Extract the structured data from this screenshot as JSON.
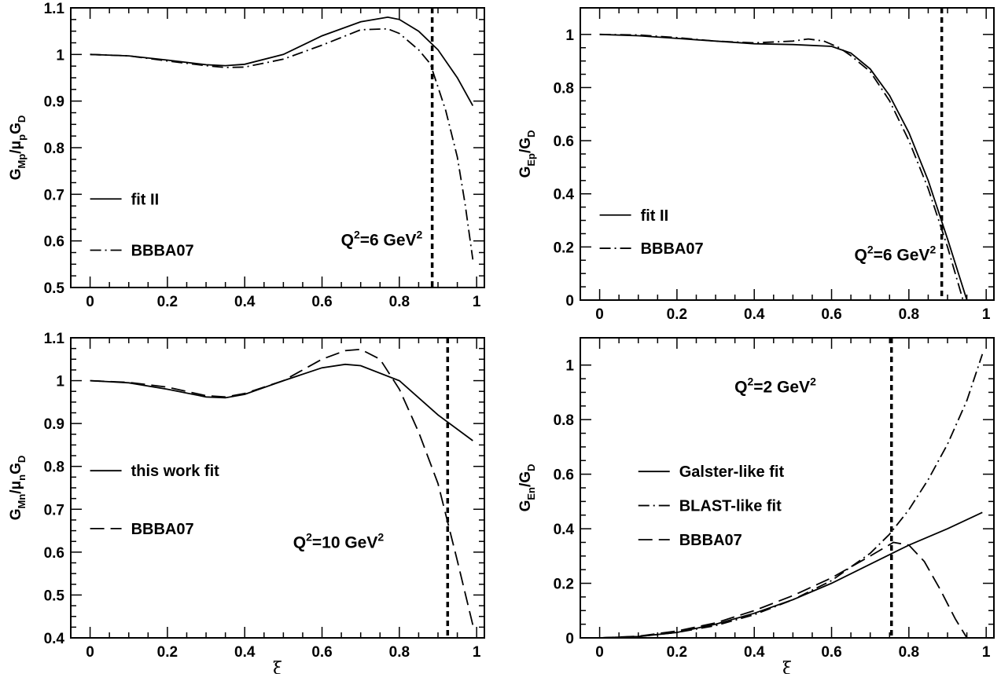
{
  "chart_data": [
    {
      "type": "line",
      "xlabel": "",
      "ylabel_parts": [
        [
          "G",
          "Mp",
          ""
        ],
        [
          "/",
          "",
          ""
        ],
        [
          "μ",
          "p",
          ""
        ],
        [
          "G",
          "D",
          ""
        ]
      ],
      "xlim": [
        -0.05,
        1.02
      ],
      "ylim": [
        0.5,
        1.1
      ],
      "xticks": [
        0,
        0.2,
        0.4,
        0.6,
        0.8,
        1
      ],
      "xtick_labels": [
        "0",
        "0.2",
        "0.4",
        "0.6",
        "0.8",
        "1"
      ],
      "yticks": [
        0.5,
        0.6,
        0.7,
        0.8,
        0.9,
        1,
        1.1
      ],
      "ytick_labels": [
        "0.5",
        "0.6",
        "0.7",
        "0.8",
        "0.9",
        "1",
        "1.1"
      ],
      "vline_x": 0.885,
      "annotation": {
        "pre": "Q",
        "sup1": "2",
        "mid": "=6 GeV",
        "sup2": "2",
        "x": 0.86,
        "y": 0.59
      },
      "legend": {
        "x": 0.0,
        "y": 0.69,
        "dy": 0.11
      },
      "series": [
        {
          "name": "fit II",
          "style": "solid",
          "x": [
            0,
            0.1,
            0.2,
            0.3,
            0.35,
            0.4,
            0.5,
            0.6,
            0.7,
            0.77,
            0.8,
            0.85,
            0.9,
            0.95,
            0.99
          ],
          "y": [
            1.0,
            0.997,
            0.988,
            0.978,
            0.976,
            0.979,
            1.0,
            1.04,
            1.07,
            1.08,
            1.075,
            1.05,
            1.01,
            0.95,
            0.89
          ]
        },
        {
          "name": "BBBA07",
          "style": "dashdot",
          "x": [
            0,
            0.1,
            0.2,
            0.3,
            0.35,
            0.4,
            0.5,
            0.6,
            0.7,
            0.77,
            0.8,
            0.85,
            0.88,
            0.92,
            0.95,
            0.97,
            0.99
          ],
          "y": [
            1.0,
            0.997,
            0.986,
            0.976,
            0.972,
            0.973,
            0.99,
            1.02,
            1.053,
            1.055,
            1.045,
            1.01,
            0.98,
            0.88,
            0.78,
            0.68,
            0.56
          ]
        }
      ]
    },
    {
      "type": "line",
      "xlabel": "",
      "ylabel_parts": [
        [
          "G",
          "Ep",
          ""
        ],
        [
          "/",
          "",
          ""
        ],
        [
          "G",
          "D",
          ""
        ]
      ],
      "xlim": [
        -0.05,
        1.02
      ],
      "ylim": [
        0,
        1.1
      ],
      "xticks": [
        0,
        0.2,
        0.4,
        0.6,
        0.8,
        1
      ],
      "xtick_labels": [
        "0",
        "0.2",
        "0.4",
        "0.6",
        "0.8",
        "1"
      ],
      "yticks": [
        0,
        0.2,
        0.4,
        0.6,
        0.8,
        1
      ],
      "ytick_labels": [
        "0",
        "0.2",
        "0.4",
        "0.6",
        "0.8",
        "1"
      ],
      "vline_x": 0.885,
      "annotation": {
        "pre": "Q",
        "sup1": "2",
        "mid": "=6 GeV",
        "sup2": "2",
        "x": 0.87,
        "y": 0.15
      },
      "legend": {
        "x": 0.0,
        "y": 0.32,
        "dy": 0.125
      },
      "series": [
        {
          "name": "fit II",
          "style": "solid",
          "x": [
            0,
            0.1,
            0.2,
            0.3,
            0.4,
            0.5,
            0.6,
            0.65,
            0.7,
            0.75,
            0.8,
            0.85,
            0.9,
            0.95
          ],
          "y": [
            1.0,
            0.995,
            0.985,
            0.975,
            0.965,
            0.962,
            0.955,
            0.93,
            0.87,
            0.77,
            0.63,
            0.45,
            0.23,
            0.0
          ]
        },
        {
          "name": "BBBA07",
          "style": "dashdot",
          "x": [
            0,
            0.1,
            0.2,
            0.3,
            0.4,
            0.5,
            0.54,
            0.58,
            0.62,
            0.65,
            0.7,
            0.75,
            0.8,
            0.85,
            0.9,
            0.94
          ],
          "y": [
            1.0,
            0.998,
            0.988,
            0.975,
            0.968,
            0.975,
            0.983,
            0.975,
            0.95,
            0.92,
            0.86,
            0.75,
            0.6,
            0.42,
            0.2,
            0.0
          ]
        }
      ]
    },
    {
      "type": "line",
      "xlabel": "ξ",
      "ylabel_parts": [
        [
          "G",
          "Mn",
          ""
        ],
        [
          "/",
          "",
          ""
        ],
        [
          "μ",
          "n",
          ""
        ],
        [
          "G",
          "D",
          ""
        ]
      ],
      "xlim": [
        -0.05,
        1.02
      ],
      "ylim": [
        0.4,
        1.1
      ],
      "xticks": [
        0,
        0.2,
        0.4,
        0.6,
        0.8,
        1
      ],
      "xtick_labels": [
        "0",
        "0.2",
        "0.4",
        "0.6",
        "0.8",
        "1"
      ],
      "yticks": [
        0.4,
        0.5,
        0.6,
        0.7,
        0.8,
        0.9,
        1,
        1.1
      ],
      "ytick_labels": [
        "0.4",
        "0.5",
        "0.6",
        "0.7",
        "0.8",
        "0.9",
        "1",
        "1.1"
      ],
      "vline_x": 0.925,
      "annotation": {
        "pre": "Q",
        "sup1": "2",
        "mid": "=10 GeV",
        "sup2": "2",
        "x": 0.76,
        "y": 0.61
      },
      "legend": {
        "x": 0.0,
        "y": 0.79,
        "dy": 0.135
      },
      "series": [
        {
          "name": "this work fit",
          "style": "solid",
          "x": [
            0,
            0.1,
            0.2,
            0.3,
            0.35,
            0.4,
            0.5,
            0.6,
            0.66,
            0.7,
            0.8,
            0.9,
            0.99
          ],
          "y": [
            1.0,
            0.995,
            0.98,
            0.962,
            0.96,
            0.968,
            1.0,
            1.03,
            1.038,
            1.035,
            1.0,
            0.92,
            0.86
          ]
        },
        {
          "name": "BBBA07",
          "style": "longdash",
          "x": [
            0,
            0.1,
            0.2,
            0.3,
            0.35,
            0.4,
            0.5,
            0.6,
            0.66,
            0.7,
            0.75,
            0.8,
            0.85,
            0.9,
            0.95,
            0.99
          ],
          "y": [
            1.0,
            0.996,
            0.985,
            0.965,
            0.962,
            0.97,
            1.0,
            1.05,
            1.07,
            1.073,
            1.05,
            0.98,
            0.88,
            0.76,
            0.58,
            0.43
          ]
        }
      ]
    },
    {
      "type": "line",
      "xlabel": "ξ",
      "ylabel_parts": [
        [
          "G",
          "En",
          ""
        ],
        [
          "/",
          "",
          ""
        ],
        [
          "G",
          "D",
          ""
        ]
      ],
      "xlim": [
        -0.05,
        1.02
      ],
      "ylim": [
        0,
        1.1
      ],
      "xticks": [
        0,
        0.2,
        0.4,
        0.6,
        0.8,
        1
      ],
      "xtick_labels": [
        "0",
        "0.2",
        "0.4",
        "0.6",
        "0.8",
        "1"
      ],
      "yticks": [
        0,
        0.2,
        0.4,
        0.6,
        0.8,
        1
      ],
      "ytick_labels": [
        "0",
        "0.2",
        "0.4",
        "0.6",
        "0.8",
        "1"
      ],
      "vline_x": 0.755,
      "annotation": {
        "pre": "Q",
        "sup1": "2",
        "mid": "=2 GeV",
        "sup2": "2",
        "x": 0.56,
        "y": 0.9
      },
      "legend": {
        "x": 0.1,
        "y": 0.61,
        "dy": 0.125
      },
      "series": [
        {
          "name": "Galster-like fit",
          "style": "solid",
          "x": [
            0,
            0.1,
            0.2,
            0.3,
            0.4,
            0.5,
            0.6,
            0.7,
            0.8,
            0.9,
            0.99
          ],
          "y": [
            0,
            0.005,
            0.02,
            0.05,
            0.09,
            0.14,
            0.2,
            0.27,
            0.34,
            0.4,
            0.46
          ]
        },
        {
          "name": "BLAST-like fit",
          "style": "dashdot",
          "x": [
            0,
            0.1,
            0.2,
            0.3,
            0.4,
            0.5,
            0.6,
            0.7,
            0.75,
            0.8,
            0.85,
            0.9,
            0.95,
            0.99
          ],
          "y": [
            0,
            0.005,
            0.02,
            0.045,
            0.085,
            0.14,
            0.21,
            0.31,
            0.38,
            0.47,
            0.58,
            0.71,
            0.87,
            1.04
          ]
        },
        {
          "name": "BBBA07",
          "style": "longdash",
          "x": [
            0,
            0.1,
            0.2,
            0.3,
            0.4,
            0.5,
            0.6,
            0.7,
            0.76,
            0.8,
            0.84,
            0.88,
            0.92,
            0.95
          ],
          "y": [
            0,
            0.006,
            0.025,
            0.055,
            0.1,
            0.155,
            0.22,
            0.3,
            0.35,
            0.34,
            0.28,
            0.18,
            0.07,
            0.0
          ]
        }
      ]
    }
  ]
}
